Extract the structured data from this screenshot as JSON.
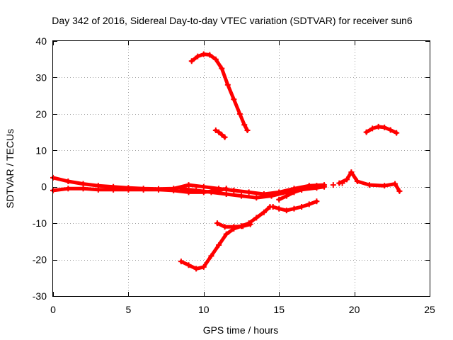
{
  "chart_data": {
    "type": "scatter",
    "title": "Day 342 of 2016, Sidereal Day-to-day VTEC variation (SDTVAR) for receiver sun6",
    "xlabel": "GPS time / hours",
    "ylabel": "SDTVAR / TECUs",
    "xlim": [
      0,
      25
    ],
    "ylim": [
      -30,
      40
    ],
    "xticks": [
      0,
      5,
      10,
      15,
      20,
      25
    ],
    "yticks": [
      -30,
      -20,
      -10,
      0,
      10,
      20,
      30,
      40
    ],
    "xtick_labels": [
      "0",
      "5",
      "10",
      "15",
      "20",
      "25"
    ],
    "ytick_labels": [
      "-30",
      "-20",
      "-10",
      "0",
      "10",
      "20",
      "30",
      "40"
    ],
    "grid": true,
    "marker": "+",
    "color": "#ff0000",
    "series": [
      {
        "name": "track-high-arc",
        "x": [
          9.2,
          9.6,
          10.0,
          10.4,
          10.8,
          11.2,
          11.6,
          12.0,
          12.4,
          12.7,
          12.9
        ],
        "y": [
          34.5,
          35.8,
          36.4,
          36.2,
          35.0,
          32.5,
          28.0,
          24.0,
          20.0,
          17.0,
          15.5
        ]
      },
      {
        "name": "track-short-segment",
        "x": [
          10.8,
          11.0,
          11.2,
          11.4
        ],
        "y": [
          15.5,
          15.0,
          14.3,
          13.6
        ]
      },
      {
        "name": "track-late-arc",
        "x": [
          20.8,
          21.2,
          21.6,
          22.0,
          22.4,
          22.8
        ],
        "y": [
          15.0,
          16.0,
          16.5,
          16.3,
          15.6,
          14.8
        ]
      },
      {
        "name": "track-baseline-1",
        "x": [
          0.0,
          1.0,
          2.0,
          3.0,
          4.0,
          5.0,
          6.0,
          7.0,
          8.0,
          9.0,
          10.0,
          11.0,
          12.0,
          13.0,
          14.0,
          15.0,
          16.0,
          17.0,
          18.0
        ],
        "y": [
          2.5,
          1.5,
          0.8,
          0.3,
          0.0,
          -0.3,
          -0.5,
          -0.6,
          -0.5,
          0.5,
          0.0,
          -0.5,
          -1.0,
          -1.5,
          -2.0,
          -1.5,
          -0.5,
          0.3,
          0.5
        ]
      },
      {
        "name": "track-baseline-2",
        "x": [
          0.0,
          1.0,
          2.0,
          3.0,
          4.0,
          5.0,
          6.0,
          7.0,
          8.0,
          9.0,
          10.0,
          11.0,
          11.5
        ],
        "y": [
          -1.0,
          -0.5,
          -0.5,
          -0.8,
          -0.8,
          -0.8,
          -0.8,
          -0.8,
          -1.0,
          -1.5,
          -1.5,
          -1.0,
          -0.5
        ]
      },
      {
        "name": "track-baseline-3",
        "x": [
          8.5,
          9.5,
          10.5,
          11.5,
          12.5,
          13.5,
          14.5,
          15.5,
          16.5,
          17.5,
          18.0
        ],
        "y": [
          -0.5,
          -1.0,
          -1.5,
          -2.0,
          -2.5,
          -3.0,
          -2.5,
          -1.5,
          -0.8,
          -0.3,
          0.0
        ]
      },
      {
        "name": "track-baseline-late",
        "x": [
          19.0,
          19.5,
          19.8,
          20.2,
          21.0,
          22.0,
          22.7,
          23.0
        ],
        "y": [
          1.0,
          2.0,
          4.0,
          1.5,
          0.5,
          0.3,
          0.8,
          -1.2
        ]
      },
      {
        "name": "track-low-arc",
        "x": [
          8.5,
          9.0,
          9.5,
          10.0,
          10.5,
          11.0,
          11.5,
          12.0,
          12.5,
          13.0,
          13.5,
          14.0,
          14.4
        ],
        "y": [
          -20.5,
          -21.5,
          -22.5,
          -22.0,
          -19.0,
          -16.0,
          -13.0,
          -11.5,
          -10.8,
          -10.0,
          -8.5,
          -7.0,
          -5.5
        ]
      },
      {
        "name": "track-low-segment",
        "x": [
          10.9,
          11.4,
          12.0,
          12.6,
          13.1
        ],
        "y": [
          -10.0,
          -11.0,
          -11.0,
          -10.8,
          -10.3
        ]
      },
      {
        "name": "track-mid-rise",
        "x": [
          14.6,
          15.0,
          15.5,
          16.0,
          16.5,
          17.0,
          17.5
        ],
        "y": [
          -5.5,
          -6.0,
          -6.5,
          -6.0,
          -5.5,
          -4.8,
          -4.0
        ]
      },
      {
        "name": "track-mid-cross",
        "x": [
          15.0,
          15.5,
          16.0,
          16.5,
          17.0,
          17.5
        ],
        "y": [
          -3.5,
          -2.5,
          -1.5,
          -0.8,
          -0.2,
          0.3
        ]
      },
      {
        "name": "isolated-points",
        "x": [
          18.6,
          19.2
        ],
        "y": [
          0.5,
          1.0
        ]
      }
    ]
  }
}
